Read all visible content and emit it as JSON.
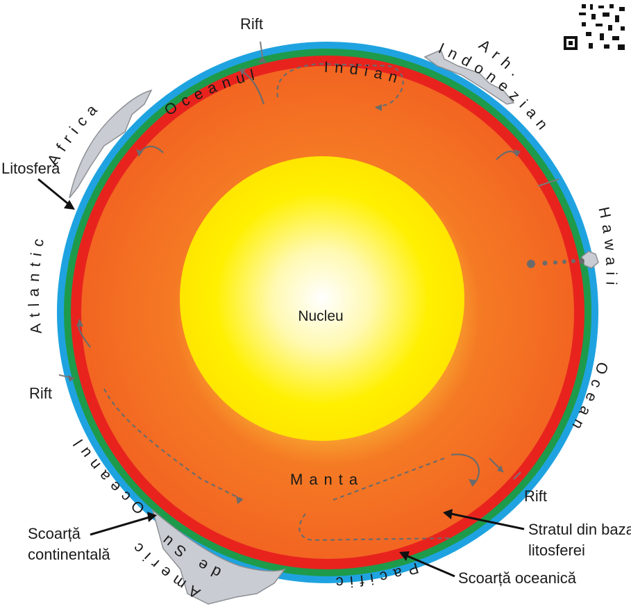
{
  "labels": {
    "core": "Nucleu",
    "mantle": "Manta",
    "lithosphere": "Litosferă",
    "continental_crust_1": "Scoarță",
    "continental_crust_2": "continentală",
    "base_layer_1": "Stratul din baza",
    "base_layer_2": "litosferei",
    "oceanic_crust": "Scoarță oceanică",
    "rift_top": "Rift",
    "rift_left": "Rift",
    "rift_right": "Rift"
  },
  "arc_labels": {
    "indian": "Indian",
    "oceanul_top": "Oceanul",
    "africa": "Africa",
    "arh": "Arh.",
    "indonezian": "Indonezian",
    "hawaii": "Hawaii",
    "atlantic": "Atlantic",
    "ocean_right": "Ocean",
    "oceanul_bottom": "Oceanul",
    "america_1": "America",
    "america_2": "de Sud",
    "pacific": "Pacific"
  },
  "colors": {
    "ocean": "#1fa3e0",
    "oceanic_crust": "#1e9a4b",
    "lithosphere": "#e8231e",
    "mantle": "#f26522",
    "core_outer": "#ffe600",
    "core_inner": "#ffffff",
    "continent": "#c9cdd3"
  }
}
